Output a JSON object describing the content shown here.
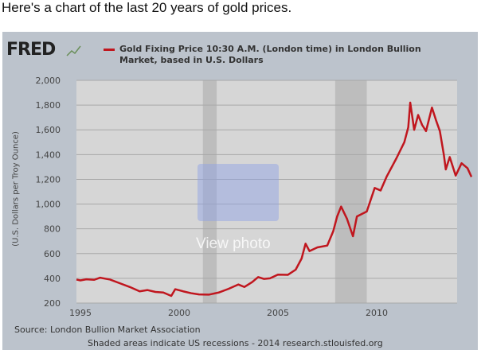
{
  "intro_text": "Here's a chart of the last 20 years of gold prices.",
  "logo": "FRED",
  "watermark": "View photo",
  "chart_data": {
    "type": "line",
    "title_line1": "Gold Fixing Price 10:30 A.M. (London time) in London Bullion",
    "title_line2": "Market, based in U.S. Dollars",
    "ylabel": "(U.S. Dollars per Troy Ounce)",
    "xlabel": "",
    "ylim": [
      200,
      2000
    ],
    "xlim": [
      1994.8,
      2014.9
    ],
    "yticks": [
      {
        "v": 200,
        "label": "200"
      },
      {
        "v": 400,
        "label": "400"
      },
      {
        "v": 600,
        "label": "600"
      },
      {
        "v": 800,
        "label": "800"
      },
      {
        "v": 1000,
        "label": "1,000"
      },
      {
        "v": 1200,
        "label": "1,200"
      },
      {
        "v": 1400,
        "label": "1,400"
      },
      {
        "v": 1600,
        "label": "1,600"
      },
      {
        "v": 1800,
        "label": "1,800"
      },
      {
        "v": 2000,
        "label": "2,000"
      }
    ],
    "xticks": [
      {
        "v": 1995,
        "label": "1995"
      },
      {
        "v": 2000,
        "label": "2000"
      },
      {
        "v": 2005,
        "label": "2005"
      },
      {
        "v": 2010,
        "label": "2010"
      }
    ],
    "recessions": [
      [
        2001.2,
        2001.9
      ],
      [
        2007.9,
        2009.5
      ]
    ],
    "grid": true,
    "series": [
      {
        "name": "Gold Fixing Price",
        "color": "#c0161e",
        "points": [
          [
            1994.8,
            390
          ],
          [
            1995.0,
            383
          ],
          [
            1995.3,
            392
          ],
          [
            1995.7,
            388
          ],
          [
            1996.0,
            405
          ],
          [
            1996.5,
            390
          ],
          [
            1997.0,
            360
          ],
          [
            1997.5,
            330
          ],
          [
            1998.0,
            295
          ],
          [
            1998.4,
            305
          ],
          [
            1998.8,
            290
          ],
          [
            1999.2,
            285
          ],
          [
            1999.6,
            258
          ],
          [
            1999.8,
            312
          ],
          [
            2000.2,
            295
          ],
          [
            2000.6,
            280
          ],
          [
            2001.0,
            270
          ],
          [
            2001.5,
            268
          ],
          [
            2002.0,
            285
          ],
          [
            2002.5,
            315
          ],
          [
            2003.0,
            350
          ],
          [
            2003.3,
            330
          ],
          [
            2003.7,
            370
          ],
          [
            2004.0,
            410
          ],
          [
            2004.3,
            395
          ],
          [
            2004.6,
            400
          ],
          [
            2005.0,
            430
          ],
          [
            2005.5,
            428
          ],
          [
            2005.9,
            470
          ],
          [
            2006.2,
            560
          ],
          [
            2006.4,
            680
          ],
          [
            2006.6,
            620
          ],
          [
            2007.0,
            650
          ],
          [
            2007.5,
            665
          ],
          [
            2007.8,
            780
          ],
          [
            2008.0,
            900
          ],
          [
            2008.2,
            980
          ],
          [
            2008.5,
            880
          ],
          [
            2008.8,
            740
          ],
          [
            2009.0,
            900
          ],
          [
            2009.5,
            940
          ],
          [
            2009.9,
            1130
          ],
          [
            2010.2,
            1110
          ],
          [
            2010.5,
            1220
          ],
          [
            2011.0,
            1370
          ],
          [
            2011.4,
            1500
          ],
          [
            2011.6,
            1620
          ],
          [
            2011.7,
            1820
          ],
          [
            2011.9,
            1600
          ],
          [
            2012.1,
            1720
          ],
          [
            2012.3,
            1640
          ],
          [
            2012.5,
            1590
          ],
          [
            2012.8,
            1780
          ],
          [
            2013.0,
            1680
          ],
          [
            2013.2,
            1590
          ],
          [
            2013.4,
            1400
          ],
          [
            2013.5,
            1280
          ],
          [
            2013.7,
            1380
          ],
          [
            2014.0,
            1230
          ],
          [
            2014.3,
            1330
          ],
          [
            2014.6,
            1290
          ],
          [
            2014.8,
            1220
          ]
        ]
      }
    ]
  },
  "footer": {
    "source": "Source: London Bullion Market Association",
    "note": "Shaded areas indicate US recessions - 2014 research.stlouisfed.org"
  }
}
